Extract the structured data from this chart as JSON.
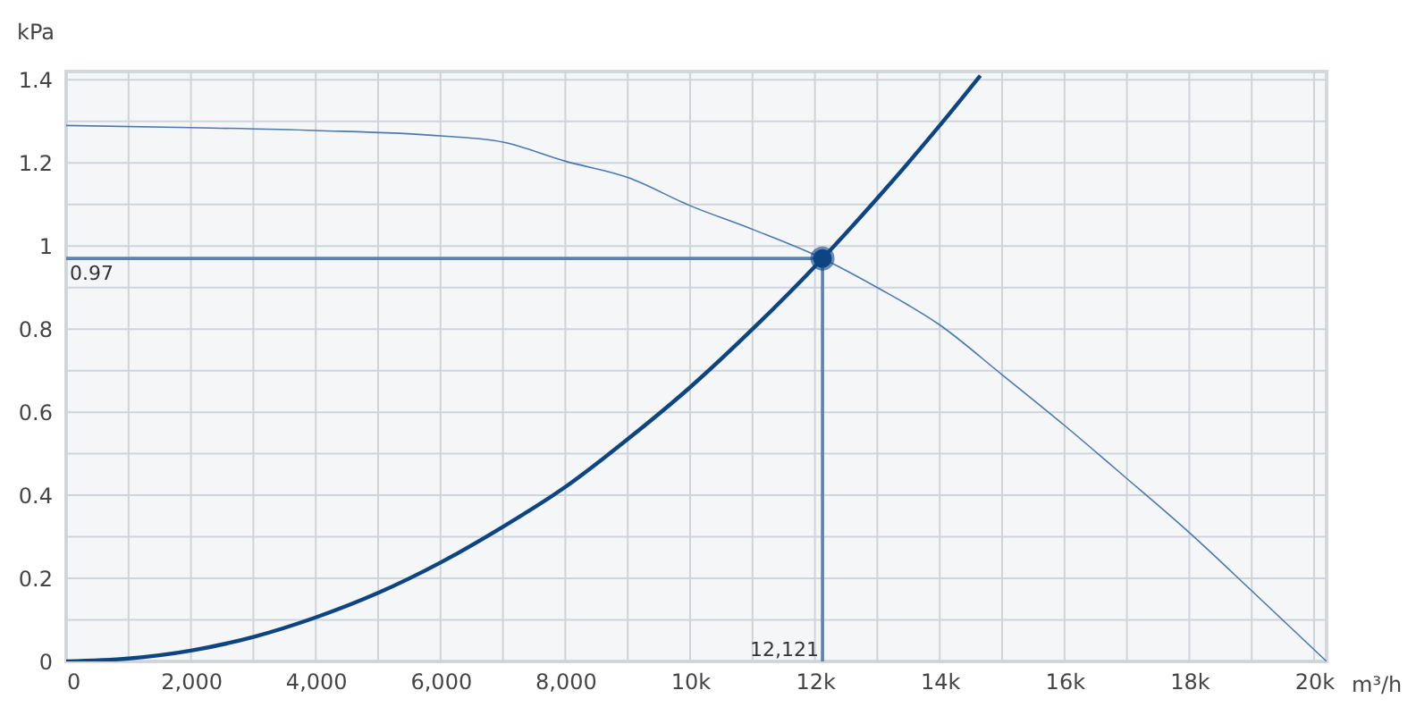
{
  "chart_data": {
    "type": "line",
    "xlabel": "m³/h",
    "ylabel": "kPa",
    "xlim": [
      0,
      20200
    ],
    "ylim": [
      0,
      1.42
    ],
    "xticks": [
      0,
      {
        "value": 1000,
        "label": null
      },
      {
        "value": 2000,
        "label": "2,000"
      },
      {
        "value": 3000,
        "label": null
      },
      {
        "value": 4000,
        "label": "4,000"
      },
      {
        "value": 5000,
        "label": null
      },
      {
        "value": 6000,
        "label": "6,000"
      },
      {
        "value": 7000,
        "label": null
      },
      {
        "value": 8000,
        "label": "8,000"
      },
      {
        "value": 9000,
        "label": null
      },
      {
        "value": 10000,
        "label": "10k"
      },
      {
        "value": 11000,
        "label": null
      },
      {
        "value": 12000,
        "label": "12k"
      },
      {
        "value": 13000,
        "label": null
      },
      {
        "value": 14000,
        "label": "14k"
      },
      {
        "value": 15000,
        "label": null
      },
      {
        "value": 16000,
        "label": "16k"
      },
      {
        "value": 17000,
        "label": null
      },
      {
        "value": 18000,
        "label": "18k"
      },
      {
        "value": 19000,
        "label": null
      },
      {
        "value": 20000,
        "label": "20k"
      }
    ],
    "yticks": [
      0,
      {
        "value": 0.1,
        "label": null
      },
      0.2,
      {
        "value": 0.3,
        "label": null
      },
      0.4,
      {
        "value": 0.5,
        "label": null
      },
      0.6,
      {
        "value": 0.7,
        "label": null
      },
      0.8,
      {
        "value": 0.9,
        "label": null
      },
      1,
      {
        "value": 1.1,
        "label": null
      },
      1.2,
      {
        "value": 1.3,
        "label": null
      },
      1.4
    ],
    "grid": true,
    "series": [
      {
        "type": "line",
        "color": "#4a78b0",
        "x": [
          0,
          2000,
          4000,
          6000,
          7000,
          8000,
          9000,
          10000,
          11000,
          12121,
          13000,
          14000,
          15000,
          16000,
          17000,
          18000,
          19000,
          20200
        ],
        "values": [
          1.29,
          1.285,
          1.278,
          1.265,
          1.25,
          1.204,
          1.165,
          1.097,
          1.04,
          0.97,
          0.9,
          0.81,
          0.69,
          0.568,
          0.44,
          0.31,
          0.17,
          0
        ]
      },
      {
        "type": "line",
        "color": "#0d4583",
        "x": [
          0,
          1000,
          2000,
          3000,
          4000,
          5000,
          6000,
          7000,
          8000,
          9000,
          10000,
          11000,
          12121,
          13000,
          14000,
          14650
        ],
        "values": [
          0,
          0.007,
          0.026,
          0.059,
          0.106,
          0.165,
          0.238,
          0.324,
          0.42,
          0.535,
          0.66,
          0.8,
          0.97,
          1.115,
          1.29,
          1.41
        ]
      },
      {
        "type": "scatter",
        "color": "#0d4583",
        "x": [
          12121
        ],
        "values": [
          0.97
        ],
        "marker": "circle"
      }
    ],
    "ref_lines": [
      {
        "axis": "y",
        "value": 0.97,
        "label": "0.97",
        "color": "#5b82b0"
      },
      {
        "axis": "x",
        "value": 12121,
        "label": "12,121",
        "color": "#5b82b0"
      }
    ]
  }
}
